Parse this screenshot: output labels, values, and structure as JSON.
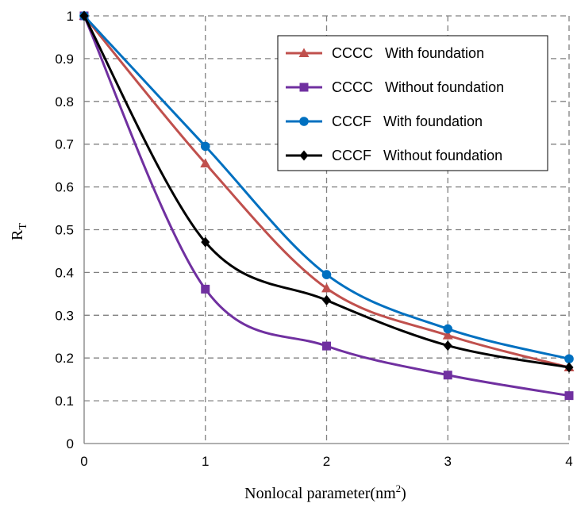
{
  "chart_data": {
    "type": "line",
    "xlabel": "Nonlocal parameter(nm",
    "xlabel_sup": "2",
    "xlabel_close": ")",
    "ylabel": "R",
    "ylabel_sub": "T",
    "x": [
      0,
      1,
      2,
      3,
      4
    ],
    "xlim": [
      0,
      4
    ],
    "ylim": [
      0,
      1
    ],
    "x_ticks": [
      "0",
      "1",
      "2",
      "3",
      "4"
    ],
    "y_ticks": [
      "0",
      "0.1",
      "0.2",
      "0.3",
      "0.4",
      "0.5",
      "0.6",
      "0.7",
      "0.8",
      "0.9",
      "1"
    ],
    "grid": "dashed",
    "legend_position": "top-right",
    "series": [
      {
        "name": "CCCC   With foundation",
        "color": "#C0504D",
        "marker": "triangle",
        "values": [
          1,
          0.655,
          0.363,
          0.253,
          0.178
        ]
      },
      {
        "name": "CCCC   Without foundation",
        "color": "#7030A0",
        "marker": "square",
        "values": [
          1,
          0.361,
          0.228,
          0.16,
          0.112
        ]
      },
      {
        "name": "CCCF   With foundation",
        "color": "#0070C0",
        "marker": "circle",
        "values": [
          1,
          0.695,
          0.395,
          0.268,
          0.198
        ]
      },
      {
        "name": "CCCF   Without foundation",
        "color": "#000000",
        "marker": "diamond",
        "values": [
          1,
          0.471,
          0.335,
          0.229,
          0.178
        ]
      }
    ]
  }
}
